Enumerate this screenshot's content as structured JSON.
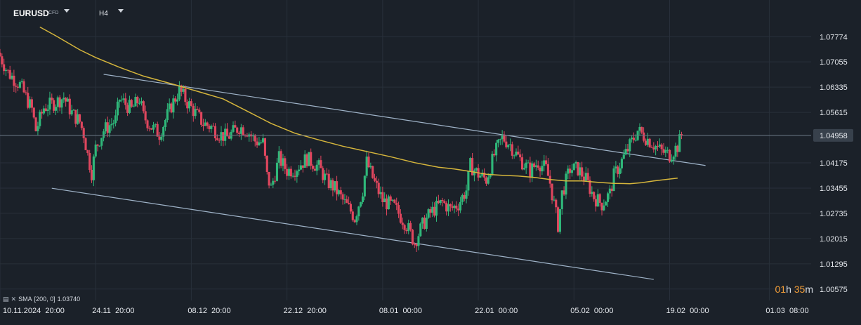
{
  "header": {
    "symbol": "EURUSD",
    "instrument_type": "CFD",
    "timeframe": "H4"
  },
  "indicator": {
    "label": "SMA",
    "params": "[200,  0]",
    "value": "1.03740"
  },
  "countdown": {
    "hours": "01",
    "hours_unit": "h",
    "minutes": "35",
    "minutes_unit": "m"
  },
  "colors": {
    "background": "#1b2129",
    "up_candle": "#2fb87a",
    "down_candle": "#e0465e",
    "sma": "#d6b63c",
    "channel": "#9fb3c8",
    "price_line": "#6b7886",
    "grid": "#28303a",
    "axis_text": "#e6e9ee",
    "price_tag": "#38414c",
    "countdown_number": "#f29d38"
  },
  "chart_data": {
    "type": "candlestick",
    "symbol": "EURUSD",
    "timeframe": "H4",
    "current_price": 1.04958,
    "y_axis": {
      "ticks": [
        "1.07774",
        "1.07055",
        "1.06335",
        "1.05615",
        "1.04958",
        "1.04175",
        "1.03455",
        "1.02735",
        "1.02015",
        "1.01295",
        "1.00575"
      ],
      "ylim": [
        1.0025,
        1.0822
      ]
    },
    "x_axis": {
      "tick_labels": [
        "10.11.2024  20:00",
        "24.11  20:00",
        "08.12  20:00",
        "22.12  20:00",
        "08.01  00:00",
        "22.01  00:00",
        "05.02  00:00",
        "19.02  00:00",
        "01.03  08:00"
      ],
      "tick_positions": [
        0,
        24,
        48,
        72,
        96,
        120,
        144,
        168,
        193
      ],
      "xlim": [
        0,
        203.5
      ]
    },
    "price_path": [
      [
        0,
        1.0722
      ],
      [
        2,
        1.0675
      ],
      [
        5,
        1.064
      ],
      [
        8,
        1.057
      ],
      [
        9,
        1.051
      ],
      [
        11,
        1.0575
      ],
      [
        14,
        1.059
      ],
      [
        16,
        1.0605
      ],
      [
        18,
        1.056
      ],
      [
        20,
        1.0535
      ],
      [
        21,
        1.05
      ],
      [
        22,
        1.044
      ],
      [
        23,
        1.039
      ],
      [
        24,
        1.046
      ],
      [
        26,
        1.051
      ],
      [
        29,
        1.054
      ],
      [
        30,
        1.06
      ],
      [
        33,
        1.057
      ],
      [
        35,
        1.06
      ],
      [
        36,
        1.055
      ],
      [
        38,
        1.052
      ],
      [
        40,
        1.05
      ],
      [
        43,
        1.058
      ],
      [
        45,
        1.0625
      ],
      [
        47,
        1.059
      ],
      [
        49,
        1.056
      ],
      [
        51,
        1.053
      ],
      [
        53,
        1.052
      ],
      [
        55,
        1.05
      ],
      [
        57,
        1.049
      ],
      [
        60,
        1.052
      ],
      [
        62,
        1.051
      ],
      [
        64,
        1.048
      ],
      [
        66,
        1.0475
      ],
      [
        67,
        1.038
      ],
      [
        68,
        1.0345
      ],
      [
        70,
        1.043
      ],
      [
        72,
        1.0395
      ],
      [
        74,
        1.04
      ],
      [
        77,
        1.043
      ],
      [
        80,
        1.0405
      ],
      [
        82,
        1.0365
      ],
      [
        84,
        1.0345
      ],
      [
        86,
        1.031
      ],
      [
        88,
        1.028
      ],
      [
        89,
        1.026
      ],
      [
        91,
        1.034
      ],
      [
        92,
        1.042
      ],
      [
        94,
        1.036
      ],
      [
        96,
        1.031
      ],
      [
        99,
        1.029
      ],
      [
        102,
        1.024
      ],
      [
        104,
        1.019
      ],
      [
        106,
        1.024
      ],
      [
        108,
        1.0275
      ],
      [
        111,
        1.0305
      ],
      [
        113,
        1.0285
      ],
      [
        115,
        1.03
      ],
      [
        117,
        1.034
      ],
      [
        118,
        1.041
      ],
      [
        120,
        1.0385
      ],
      [
        122,
        1.037
      ],
      [
        124,
        1.044
      ],
      [
        126,
        1.049
      ],
      [
        128,
        1.047
      ],
      [
        129,
        1.045
      ],
      [
        131,
        1.042
      ],
      [
        133,
        1.0395
      ],
      [
        135,
        1.042
      ],
      [
        137,
        1.04
      ],
      [
        138,
        1.036
      ],
      [
        140,
        1.024
      ],
      [
        141,
        1.033
      ],
      [
        143,
        1.04
      ],
      [
        145,
        1.04
      ],
      [
        147,
        1.037
      ],
      [
        149,
        1.032
      ],
      [
        151,
        1.03
      ],
      [
        153,
        1.033
      ],
      [
        154,
        1.038
      ],
      [
        157,
        1.0445
      ],
      [
        160,
        1.051
      ],
      [
        162,
        1.049
      ],
      [
        164,
        1.047
      ],
      [
        166,
        1.045
      ],
      [
        168,
        1.044
      ],
      [
        170,
        1.0465
      ],
      [
        171,
        1.0495
      ]
    ],
    "sma": {
      "name": "SMA",
      "period": 200,
      "value": 1.0374,
      "points": [
        [
          10,
          1.0805
        ],
        [
          14,
          1.078
        ],
        [
          20,
          1.074
        ],
        [
          24,
          1.0718
        ],
        [
          30,
          1.069
        ],
        [
          36,
          1.0665
        ],
        [
          44,
          1.064
        ],
        [
          50,
          1.062
        ],
        [
          56,
          1.06
        ],
        [
          62,
          1.0565
        ],
        [
          68,
          1.053
        ],
        [
          74,
          1.0502
        ],
        [
          80,
          1.0483
        ],
        [
          86,
          1.0465
        ],
        [
          92,
          1.045
        ],
        [
          98,
          1.0435
        ],
        [
          104,
          1.0418
        ],
        [
          110,
          1.0405
        ],
        [
          114,
          1.04
        ],
        [
          118,
          1.0393
        ],
        [
          122,
          1.0385
        ],
        [
          126,
          1.0382
        ],
        [
          130,
          1.038
        ],
        [
          134,
          1.0376
        ],
        [
          138,
          1.037
        ],
        [
          142,
          1.0366
        ],
        [
          146,
          1.0366
        ],
        [
          150,
          1.0362
        ],
        [
          154,
          1.0359
        ],
        [
          158,
          1.0358
        ],
        [
          161,
          1.0361
        ],
        [
          164,
          1.0366
        ],
        [
          167,
          1.037
        ],
        [
          170,
          1.0374
        ]
      ]
    },
    "channel": {
      "upper": [
        [
          26,
          1.067
        ],
        [
          177,
          1.041
        ]
      ],
      "lower": [
        [
          13,
          1.0345
        ],
        [
          164,
          1.0085
        ]
      ]
    }
  }
}
